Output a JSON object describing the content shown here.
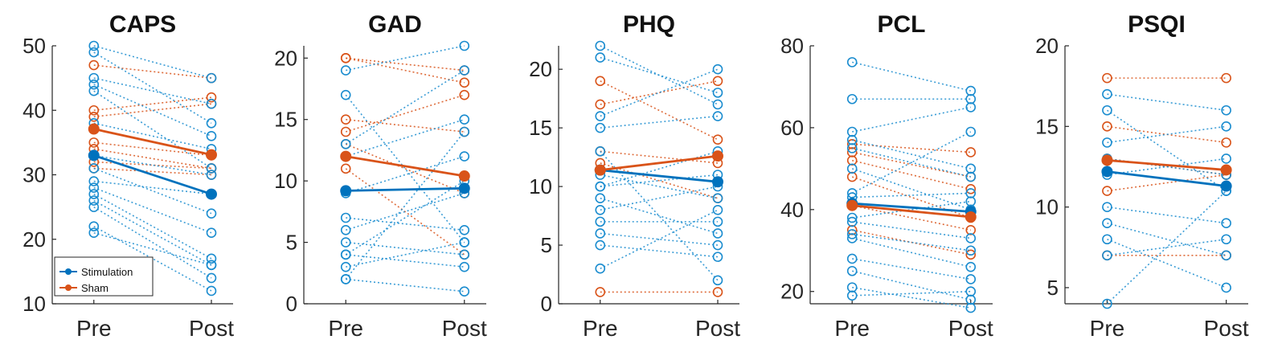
{
  "colors": {
    "stimulation": "#0072BD",
    "sham": "#D95319",
    "stim_light": "#4DBEEE"
  },
  "legend": {
    "entries": [
      "Stimulation",
      "Sham"
    ],
    "placement": "bottom-left of first panel"
  },
  "chart_data": [
    {
      "type": "line",
      "title": "CAPS",
      "categories": [
        "Pre",
        "Post"
      ],
      "ylim": [
        10,
        50
      ],
      "yticks": [
        10,
        20,
        30,
        40,
        50
      ],
      "series": [
        {
          "name": "Stimulation",
          "values": [
            33,
            27
          ]
        },
        {
          "name": "Sham",
          "values": [
            37.1,
            33.1
          ]
        }
      ],
      "subjects_stimulation": [
        [
          50,
          45
        ],
        [
          49,
          38
        ],
        [
          45,
          41
        ],
        [
          44,
          36
        ],
        [
          43,
          31
        ],
        [
          38,
          34
        ],
        [
          33,
          30
        ],
        [
          31,
          24
        ],
        [
          29,
          27
        ],
        [
          28,
          21
        ],
        [
          27,
          17
        ],
        [
          26,
          16
        ],
        [
          25,
          14
        ],
        [
          22,
          12
        ],
        [
          21,
          16
        ]
      ],
      "subjects_sham": [
        [
          47,
          45
        ],
        [
          40,
          42
        ],
        [
          39,
          41
        ],
        [
          35,
          33
        ],
        [
          34,
          31
        ],
        [
          32,
          31
        ],
        [
          31,
          30
        ]
      ]
    },
    {
      "type": "line",
      "title": "GAD",
      "categories": [
        "Pre",
        "Post"
      ],
      "ylim": [
        0,
        21
      ],
      "yticks": [
        0,
        5,
        10,
        15,
        20
      ],
      "series": [
        {
          "name": "Stimulation",
          "values": [
            9.2,
            9.4
          ]
        },
        {
          "name": "Sham",
          "values": [
            12,
            10.4
          ]
        }
      ],
      "subjects_stimulation": [
        [
          19,
          21
        ],
        [
          17,
          5
        ],
        [
          13,
          19
        ],
        [
          12,
          15
        ],
        [
          9,
          12
        ],
        [
          7,
          6
        ],
        [
          6,
          9
        ],
        [
          5,
          4
        ],
        [
          4,
          3
        ],
        [
          4,
          10
        ],
        [
          3,
          5
        ],
        [
          2,
          1
        ],
        [
          2,
          14
        ]
      ],
      "subjects_sham": [
        [
          20,
          19
        ],
        [
          20,
          18
        ],
        [
          15,
          14
        ],
        [
          14,
          17
        ],
        [
          13,
          9
        ],
        [
          11,
          4
        ]
      ]
    },
    {
      "type": "line",
      "title": "PHQ",
      "categories": [
        "Pre",
        "Post"
      ],
      "ylim": [
        0,
        22
      ],
      "yticks": [
        0,
        5,
        10,
        15,
        20
      ],
      "series": [
        {
          "name": "Stimulation",
          "values": [
            11.4,
            10.4
          ]
        },
        {
          "name": "Sham",
          "values": [
            11.4,
            12.6
          ]
        }
      ],
      "subjects_stimulation": [
        [
          22,
          17
        ],
        [
          21,
          18
        ],
        [
          16,
          20
        ],
        [
          15,
          16
        ],
        [
          13,
          2
        ],
        [
          11,
          9
        ],
        [
          10,
          13
        ],
        [
          10,
          11
        ],
        [
          9,
          6
        ],
        [
          8,
          10
        ],
        [
          7,
          7
        ],
        [
          6,
          5
        ],
        [
          5,
          4
        ],
        [
          3,
          8
        ]
      ],
      "subjects_sham": [
        [
          19,
          14
        ],
        [
          17,
          19
        ],
        [
          13,
          12
        ],
        [
          12,
          9
        ],
        [
          1,
          1
        ]
      ]
    },
    {
      "type": "line",
      "title": "PCL",
      "categories": [
        "Pre",
        "Post"
      ],
      "ylim": [
        17,
        80
      ],
      "yticks": [
        20,
        40,
        60,
        80
      ],
      "series": [
        {
          "name": "Stimulation",
          "values": [
            41.5,
            39.5
          ]
        },
        {
          "name": "Sham",
          "values": [
            41,
            38.2
          ]
        }
      ],
      "subjects_stimulation": [
        [
          76,
          69
        ],
        [
          67,
          67
        ],
        [
          59,
          65
        ],
        [
          57,
          50
        ],
        [
          55,
          48
        ],
        [
          50,
          40
        ],
        [
          44,
          59
        ],
        [
          43,
          44
        ],
        [
          38,
          42
        ],
        [
          37,
          33
        ],
        [
          34,
          30
        ],
        [
          33,
          26
        ],
        [
          28,
          23
        ],
        [
          25,
          18
        ],
        [
          21,
          16
        ],
        [
          19,
          20
        ]
      ],
      "subjects_sham": [
        [
          56,
          54
        ],
        [
          54,
          48
        ],
        [
          52,
          45
        ],
        [
          48,
          38
        ],
        [
          41,
          35
        ],
        [
          35,
          29
        ]
      ]
    },
    {
      "type": "line",
      "title": "PSQI",
      "categories": [
        "Pre",
        "Post"
      ],
      "ylim": [
        4,
        20
      ],
      "yticks": [
        5,
        10,
        15,
        20
      ],
      "series": [
        {
          "name": "Stimulation",
          "values": [
            12.2,
            11.3
          ]
        },
        {
          "name": "Sham",
          "values": [
            12.9,
            12.3
          ]
        }
      ],
      "subjects_stimulation": [
        [
          17,
          16
        ],
        [
          16,
          11
        ],
        [
          14,
          15
        ],
        [
          13,
          12
        ],
        [
          12,
          13
        ],
        [
          10,
          9
        ],
        [
          9,
          7
        ],
        [
          8,
          5
        ],
        [
          7,
          8
        ],
        [
          4,
          11
        ]
      ],
      "subjects_sham": [
        [
          18,
          18
        ],
        [
          15,
          14
        ],
        [
          13,
          12
        ],
        [
          11,
          12
        ],
        [
          7,
          7
        ]
      ]
    }
  ]
}
